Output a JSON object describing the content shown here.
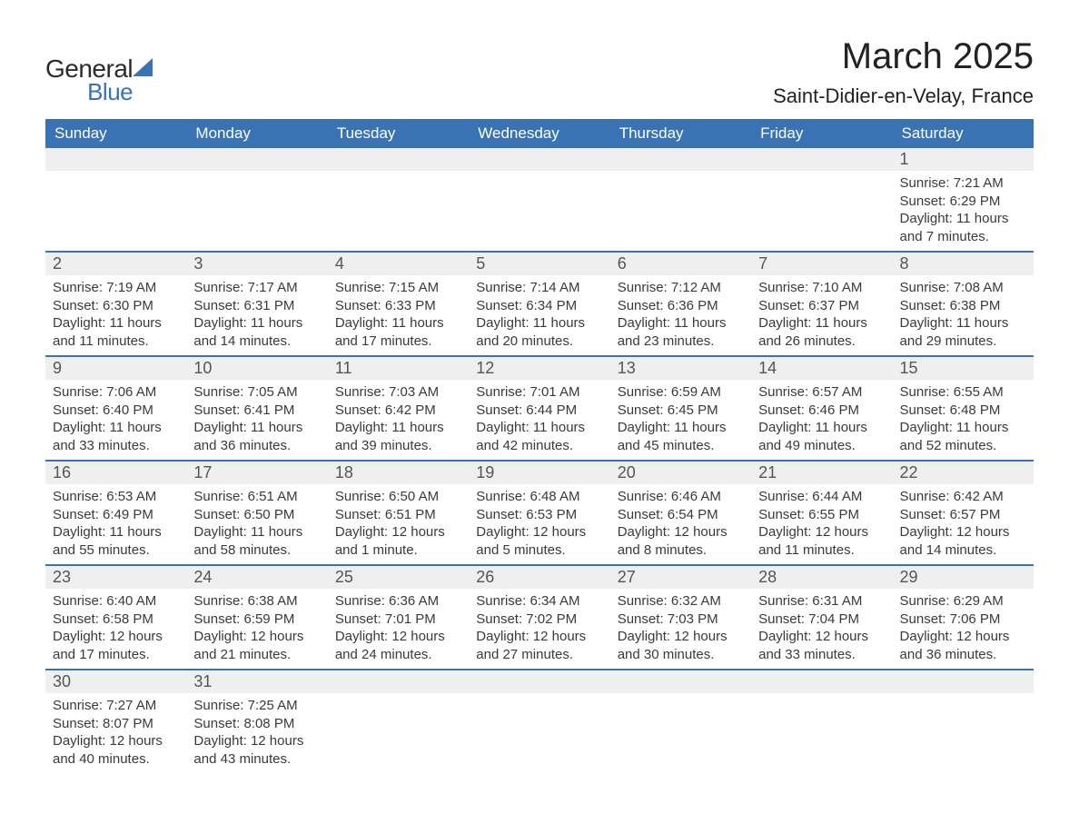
{
  "brand": {
    "word1": "General",
    "word2": "Blue"
  },
  "title": "March 2025",
  "location": "Saint-Didier-en-Velay, France",
  "colors": {
    "header_bg": "#3a73b4",
    "header_text": "#ffffff",
    "daynum_bg": "#efefef",
    "row_divider": "#3a73b4",
    "body_text": "#3a3a3a",
    "page_bg": "#ffffff"
  },
  "typography": {
    "title_fontsize": 40,
    "location_fontsize": 22,
    "header_fontsize": 17,
    "daynum_fontsize": 18,
    "detail_fontsize": 15
  },
  "layout": {
    "columns": 7,
    "week_rows": 6
  },
  "weekdays": [
    "Sunday",
    "Monday",
    "Tuesday",
    "Wednesday",
    "Thursday",
    "Friday",
    "Saturday"
  ],
  "labels": {
    "sunrise": "Sunrise:",
    "sunset": "Sunset:",
    "daylight": "Daylight:"
  },
  "weeks": [
    [
      null,
      null,
      null,
      null,
      null,
      null,
      {
        "n": "1",
        "sr": "7:21 AM",
        "ss": "6:29 PM",
        "dl": "11 hours and 7 minutes."
      }
    ],
    [
      {
        "n": "2",
        "sr": "7:19 AM",
        "ss": "6:30 PM",
        "dl": "11 hours and 11 minutes."
      },
      {
        "n": "3",
        "sr": "7:17 AM",
        "ss": "6:31 PM",
        "dl": "11 hours and 14 minutes."
      },
      {
        "n": "4",
        "sr": "7:15 AM",
        "ss": "6:33 PM",
        "dl": "11 hours and 17 minutes."
      },
      {
        "n": "5",
        "sr": "7:14 AM",
        "ss": "6:34 PM",
        "dl": "11 hours and 20 minutes."
      },
      {
        "n": "6",
        "sr": "7:12 AM",
        "ss": "6:36 PM",
        "dl": "11 hours and 23 minutes."
      },
      {
        "n": "7",
        "sr": "7:10 AM",
        "ss": "6:37 PM",
        "dl": "11 hours and 26 minutes."
      },
      {
        "n": "8",
        "sr": "7:08 AM",
        "ss": "6:38 PM",
        "dl": "11 hours and 29 minutes."
      }
    ],
    [
      {
        "n": "9",
        "sr": "7:06 AM",
        "ss": "6:40 PM",
        "dl": "11 hours and 33 minutes."
      },
      {
        "n": "10",
        "sr": "7:05 AM",
        "ss": "6:41 PM",
        "dl": "11 hours and 36 minutes."
      },
      {
        "n": "11",
        "sr": "7:03 AM",
        "ss": "6:42 PM",
        "dl": "11 hours and 39 minutes."
      },
      {
        "n": "12",
        "sr": "7:01 AM",
        "ss": "6:44 PM",
        "dl": "11 hours and 42 minutes."
      },
      {
        "n": "13",
        "sr": "6:59 AM",
        "ss": "6:45 PM",
        "dl": "11 hours and 45 minutes."
      },
      {
        "n": "14",
        "sr": "6:57 AM",
        "ss": "6:46 PM",
        "dl": "11 hours and 49 minutes."
      },
      {
        "n": "15",
        "sr": "6:55 AM",
        "ss": "6:48 PM",
        "dl": "11 hours and 52 minutes."
      }
    ],
    [
      {
        "n": "16",
        "sr": "6:53 AM",
        "ss": "6:49 PM",
        "dl": "11 hours and 55 minutes."
      },
      {
        "n": "17",
        "sr": "6:51 AM",
        "ss": "6:50 PM",
        "dl": "11 hours and 58 minutes."
      },
      {
        "n": "18",
        "sr": "6:50 AM",
        "ss": "6:51 PM",
        "dl": "12 hours and 1 minute."
      },
      {
        "n": "19",
        "sr": "6:48 AM",
        "ss": "6:53 PM",
        "dl": "12 hours and 5 minutes."
      },
      {
        "n": "20",
        "sr": "6:46 AM",
        "ss": "6:54 PM",
        "dl": "12 hours and 8 minutes."
      },
      {
        "n": "21",
        "sr": "6:44 AM",
        "ss": "6:55 PM",
        "dl": "12 hours and 11 minutes."
      },
      {
        "n": "22",
        "sr": "6:42 AM",
        "ss": "6:57 PM",
        "dl": "12 hours and 14 minutes."
      }
    ],
    [
      {
        "n": "23",
        "sr": "6:40 AM",
        "ss": "6:58 PM",
        "dl": "12 hours and 17 minutes."
      },
      {
        "n": "24",
        "sr": "6:38 AM",
        "ss": "6:59 PM",
        "dl": "12 hours and 21 minutes."
      },
      {
        "n": "25",
        "sr": "6:36 AM",
        "ss": "7:01 PM",
        "dl": "12 hours and 24 minutes."
      },
      {
        "n": "26",
        "sr": "6:34 AM",
        "ss": "7:02 PM",
        "dl": "12 hours and 27 minutes."
      },
      {
        "n": "27",
        "sr": "6:32 AM",
        "ss": "7:03 PM",
        "dl": "12 hours and 30 minutes."
      },
      {
        "n": "28",
        "sr": "6:31 AM",
        "ss": "7:04 PM",
        "dl": "12 hours and 33 minutes."
      },
      {
        "n": "29",
        "sr": "6:29 AM",
        "ss": "7:06 PM",
        "dl": "12 hours and 36 minutes."
      }
    ],
    [
      {
        "n": "30",
        "sr": "7:27 AM",
        "ss": "8:07 PM",
        "dl": "12 hours and 40 minutes."
      },
      {
        "n": "31",
        "sr": "7:25 AM",
        "ss": "8:08 PM",
        "dl": "12 hours and 43 minutes."
      },
      null,
      null,
      null,
      null,
      null
    ]
  ]
}
